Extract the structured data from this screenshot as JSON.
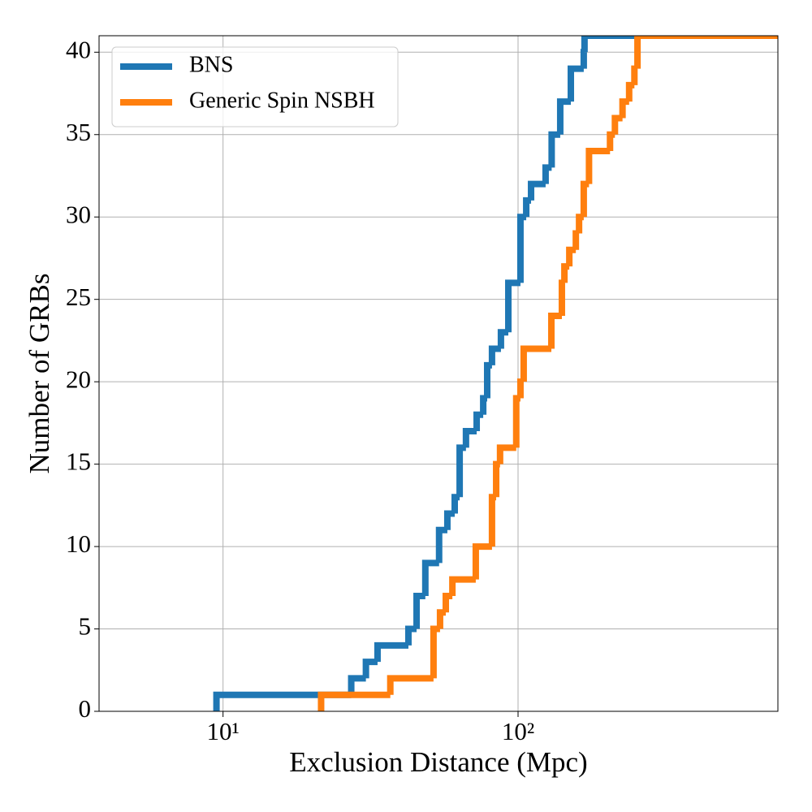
{
  "chart_data": {
    "type": "step",
    "xlabel": "Exclusion Distance (Mpc)",
    "ylabel": "Number of GRBs",
    "xscale": "log",
    "xlim": [
      3.8,
      760
    ],
    "ylim": [
      0,
      41
    ],
    "xticks": [
      {
        "value": 10,
        "label": "10¹"
      },
      {
        "value": 100,
        "label": "10²"
      }
    ],
    "yticks": [
      0,
      5,
      10,
      15,
      20,
      25,
      30,
      35,
      40
    ],
    "grid": true,
    "legend": "upper left",
    "series": [
      {
        "name": "BNS",
        "color": "#1f77b4",
        "x": [
          9.5,
          27.2,
          30.5,
          33.4,
          42.5,
          45.3,
          48.5,
          54.0,
          57.6,
          61.0,
          63.4,
          66.6,
          72.4,
          76.2,
          78.6,
          81.6,
          87.5,
          92.7,
          101.9,
          106.6,
          110.7,
          124,
          130,
          139,
          151,
          167,
          168
        ],
        "values": [
          1,
          2,
          3,
          4,
          5,
          7,
          9,
          11,
          12,
          13,
          16,
          17,
          18,
          19,
          21,
          22,
          23,
          26,
          30,
          31,
          32,
          33,
          35,
          37,
          39,
          40,
          41
        ]
      },
      {
        "name": "Generic Spin NSBH",
        "color": "#ff7f0e",
        "x": [
          21.5,
          36.9,
          51.7,
          54.4,
          56.9,
          59.9,
          71.9,
          81.6,
          84.3,
          86.9,
          98.6,
          101.9,
          104.5,
          129.7,
          140.8,
          143.6,
          149.2,
          157,
          161,
          167,
          174,
          205,
          213,
          226,
          238,
          248,
          254
        ],
        "values": [
          1,
          2,
          5,
          6,
          7,
          8,
          10,
          13,
          15,
          16,
          19,
          20,
          22,
          24,
          26,
          27,
          28,
          29,
          30,
          32,
          34,
          35,
          36,
          37,
          38,
          39,
          41
        ]
      }
    ]
  }
}
